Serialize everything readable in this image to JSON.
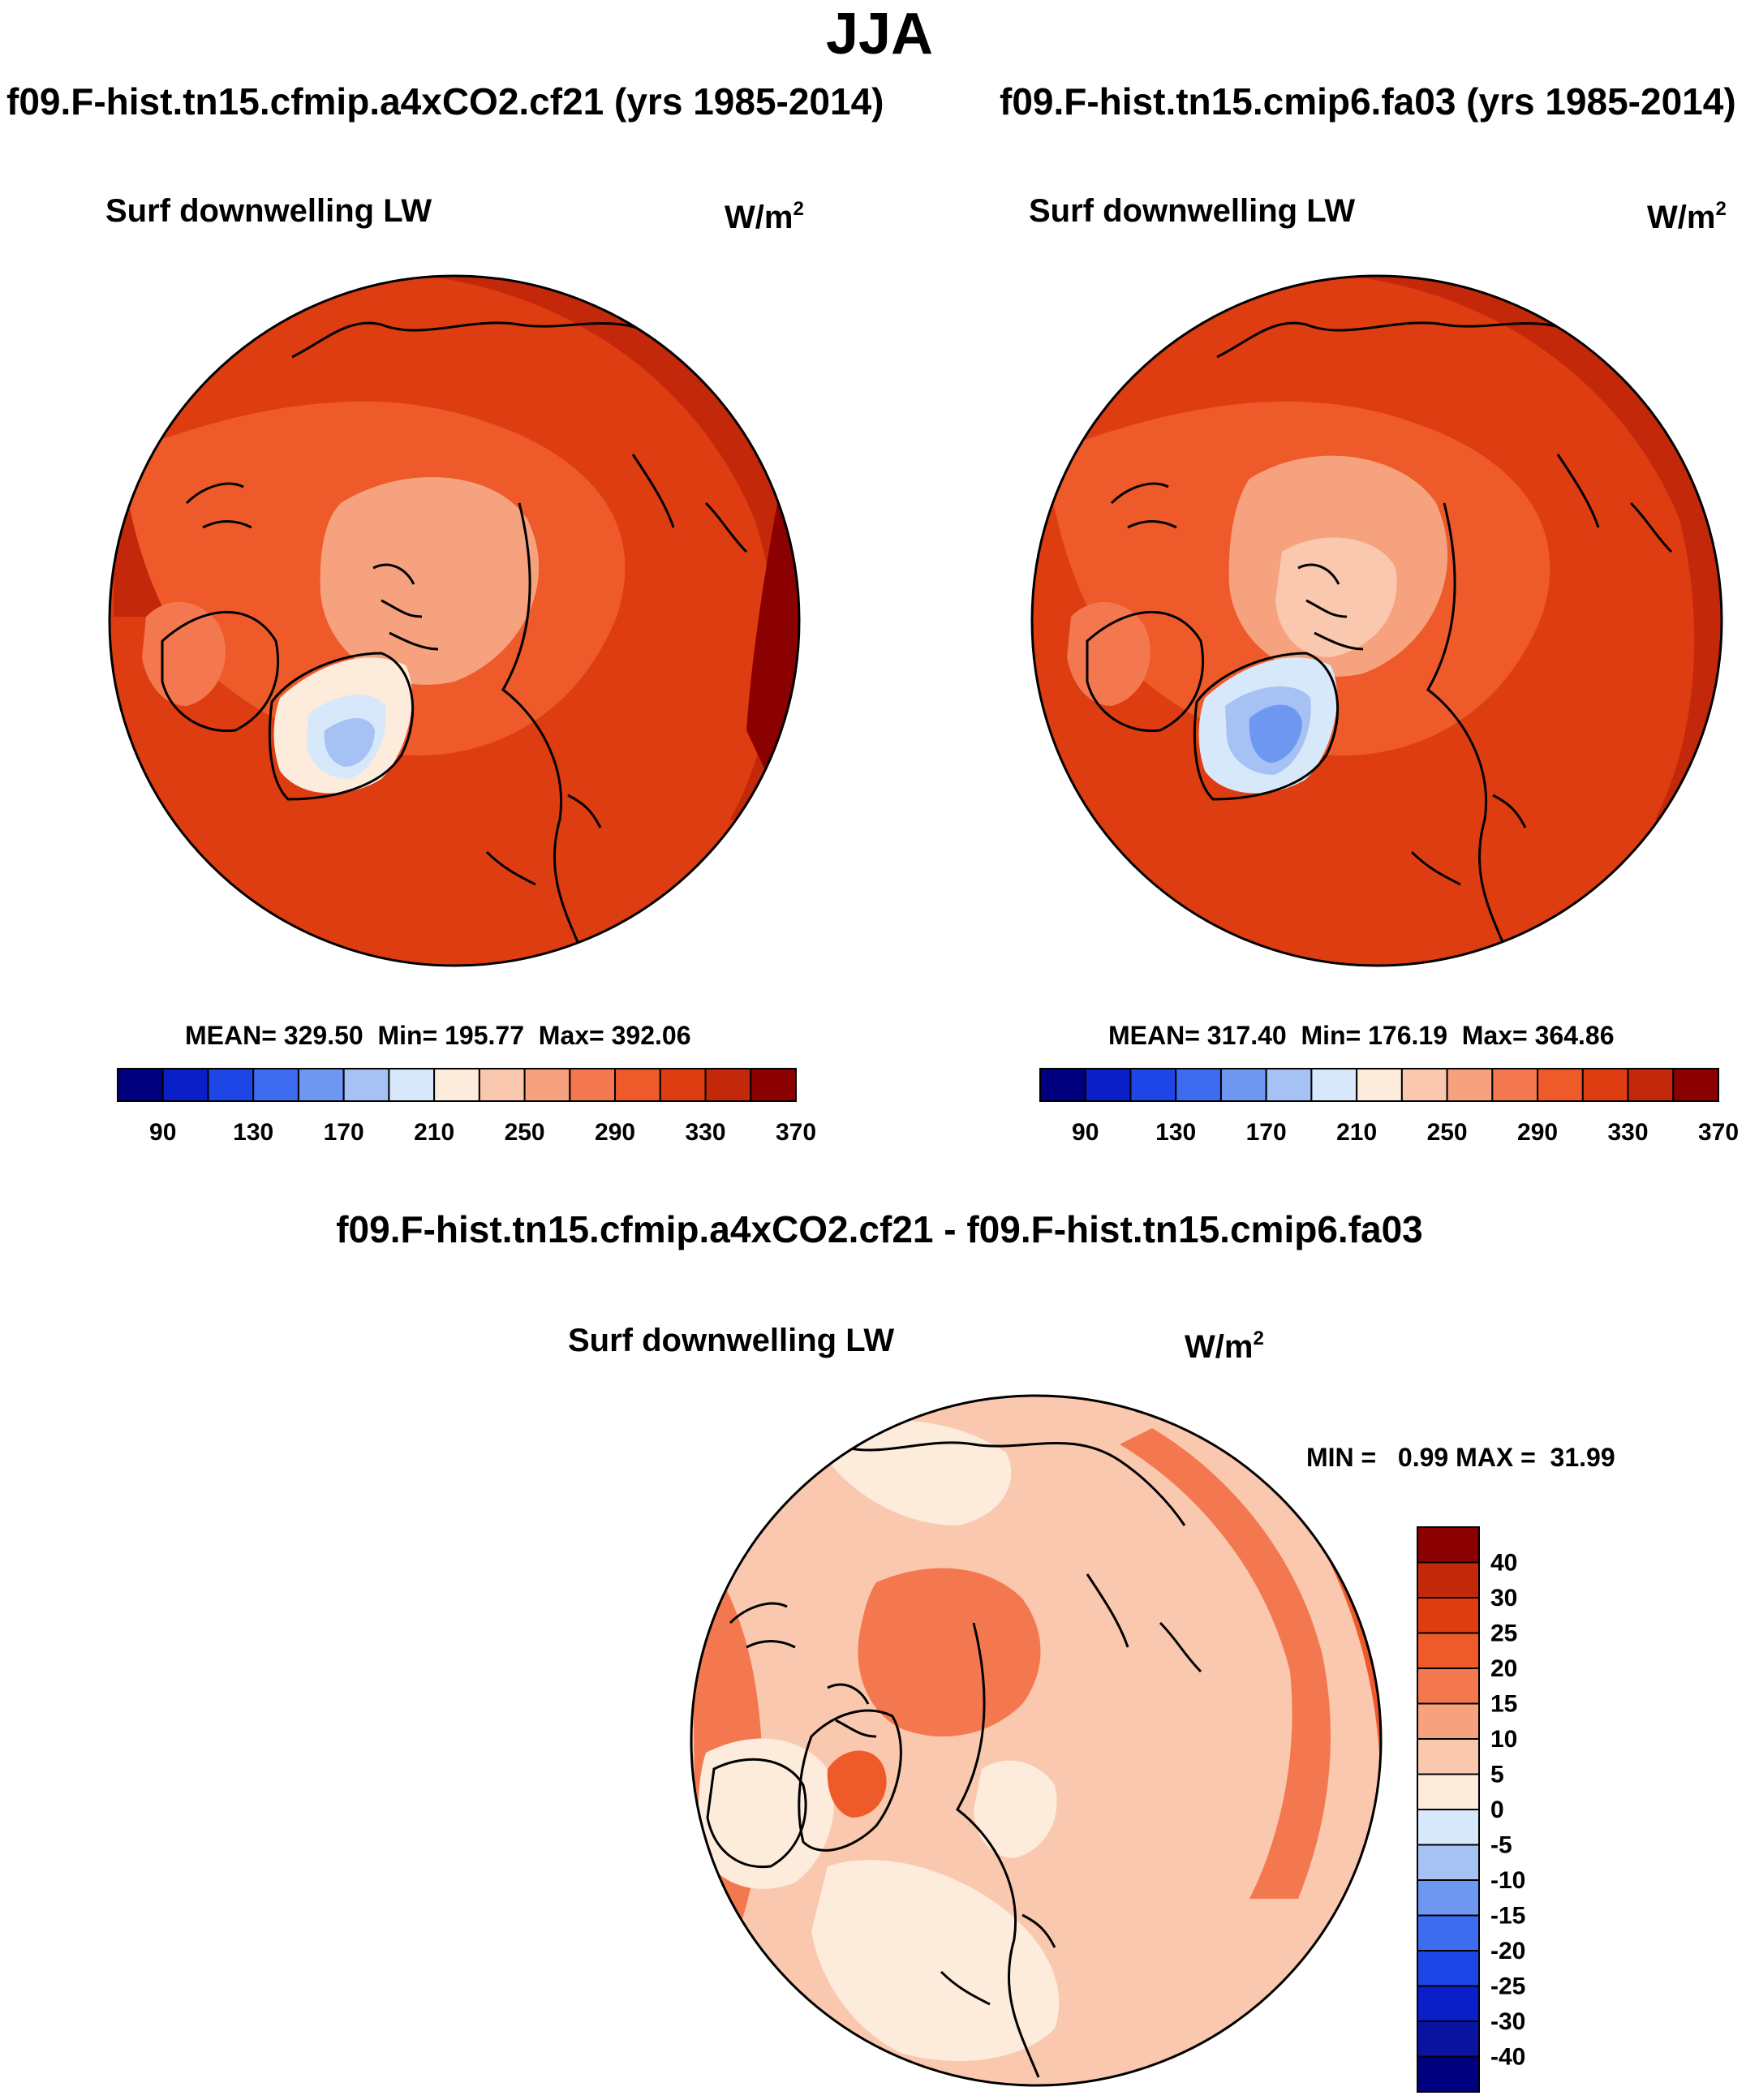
{
  "figure": {
    "title": "JJA",
    "case1_title": "f09.F-hist.tn15.cfmip.a4xCO2.cf21 (yrs 1985-2014)",
    "case2_title": "f09.F-hist.tn15.cmip6.fa03 (yrs 1985-2014)",
    "diff_title": "f09.F-hist.tn15.cfmip.a4xCO2.cf21 - f09.F-hist.tn15.cmip6.fa03"
  },
  "panels": [
    {
      "variable": "Surf downwelling LW",
      "units_base": "W/m",
      "units_exp": "2",
      "stats": "MEAN= 329.50  Min= 195.77  Max= 392.06"
    },
    {
      "variable": "Surf downwelling LW",
      "units_base": "W/m",
      "units_exp": "2",
      "stats": "MEAN= 317.40  Min= 176.19  Max= 364.86"
    },
    {
      "variable": "Surf downwelling LW",
      "units_base": "W/m",
      "units_exp": "2",
      "stats": "MIN =   0.99 MAX =  31.99"
    }
  ],
  "chart_data": [
    {
      "type": "heatmap",
      "title": "Surf downwelling LW",
      "subtitle": "f09.F-hist.tn15.cfmip.a4xCO2.cf21 (yrs 1985-2014)",
      "projection": "north-polar-stereographic",
      "units": "W/m2",
      "mean": 329.5,
      "min": 195.77,
      "max": 392.06,
      "colorbar": {
        "orientation": "horizontal",
        "levels": [
          70,
          90,
          110,
          130,
          150,
          170,
          190,
          210,
          230,
          250,
          270,
          290,
          310,
          330,
          350,
          370,
          390
        ],
        "tick_labels": [
          "90",
          "130",
          "170",
          "210",
          "250",
          "290",
          "330",
          "370"
        ],
        "colors": [
          "#00007f",
          "#0a1fc8",
          "#1e46e6",
          "#3d6cf0",
          "#6e97f2",
          "#a6c2f5",
          "#d7e8fa",
          "#fdebdc",
          "#f9c8ae",
          "#f6a27f",
          "#f4784f",
          "#ef5a2a",
          "#de3c11",
          "#c4280b",
          "#8b0000"
        ]
      }
    },
    {
      "type": "heatmap",
      "title": "Surf downwelling LW",
      "subtitle": "f09.F-hist.tn15.cmip6.fa03 (yrs 1985-2014)",
      "projection": "north-polar-stereographic",
      "units": "W/m2",
      "mean": 317.4,
      "min": 176.19,
      "max": 364.86,
      "colorbar": {
        "orientation": "horizontal",
        "levels": [
          70,
          90,
          110,
          130,
          150,
          170,
          190,
          210,
          230,
          250,
          270,
          290,
          310,
          330,
          350,
          370,
          390
        ],
        "tick_labels": [
          "90",
          "130",
          "170",
          "210",
          "250",
          "290",
          "330",
          "370"
        ],
        "colors": [
          "#00007f",
          "#0a1fc8",
          "#1e46e6",
          "#3d6cf0",
          "#6e97f2",
          "#a6c2f5",
          "#d7e8fa",
          "#fdebdc",
          "#f9c8ae",
          "#f6a27f",
          "#f4784f",
          "#ef5a2a",
          "#de3c11",
          "#c4280b",
          "#8b0000"
        ]
      }
    },
    {
      "type": "heatmap",
      "title": "Surf downwelling LW",
      "subtitle": "f09.F-hist.tn15.cfmip.a4xCO2.cf21 - f09.F-hist.tn15.cmip6.fa03",
      "projection": "north-polar-stereographic",
      "units": "W/m2",
      "min": 0.99,
      "max": 31.99,
      "colorbar": {
        "orientation": "vertical",
        "tick_labels": [
          "40",
          "30",
          "25",
          "20",
          "15",
          "10",
          "5",
          "0",
          "-5",
          "-10",
          "-15",
          "-20",
          "-25",
          "-30",
          "-40"
        ],
        "colors": [
          "#8b0000",
          "#c4280b",
          "#de3c11",
          "#ef5a2a",
          "#f4784f",
          "#f6a27f",
          "#f9c8ae",
          "#fdebdc",
          "#d7e8fa",
          "#a6c2f5",
          "#6e97f2",
          "#3d6cf0",
          "#1e46e6",
          "#0a1fc8",
          "#0a14a0",
          "#00007f"
        ]
      }
    }
  ]
}
